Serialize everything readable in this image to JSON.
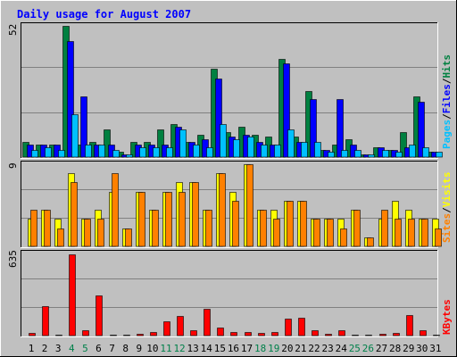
{
  "title": "Daily usage for August 2007",
  "y_max_labels": {
    "top": "52",
    "middle": "9",
    "bottom": "635"
  },
  "legend": {
    "top": [
      "Hits",
      "/",
      "Files",
      "/",
      "Pages"
    ],
    "middle": [
      "Visits",
      "/",
      "Sites"
    ],
    "bottom": [
      "KBytes"
    ]
  },
  "colors": {
    "background": "#C0C0C0",
    "title": "#0000FF",
    "hits": "#008040",
    "files": "#0000FF",
    "pages": "#00C0FF",
    "visits": "#FFFF00",
    "sites": "#FF8000",
    "kbytes": "#FF0000",
    "weekend_label": "#00804A"
  },
  "chart_data": [
    {
      "type": "bar",
      "title": "Daily usage for August 2007",
      "x": [
        "1",
        "2",
        "3",
        "4",
        "5",
        "6",
        "7",
        "8",
        "9",
        "10",
        "11",
        "12",
        "13",
        "14",
        "15",
        "16",
        "17",
        "18",
        "19",
        "20",
        "21",
        "22",
        "23",
        "24",
        "25",
        "26",
        "27",
        "28",
        "29",
        "30",
        "31"
      ],
      "weekend_days": [
        "4",
        "5",
        "11",
        "12",
        "18",
        "19",
        "25",
        "26"
      ],
      "ylim": [
        0,
        52
      ],
      "grid": true,
      "series": [
        {
          "name": "Hits",
          "values": [
            6,
            5,
            5,
            52,
            5,
            6,
            11,
            2,
            6,
            6,
            11,
            13,
            6,
            9,
            35,
            10,
            12,
            9,
            8,
            39,
            8,
            26,
            3,
            5,
            7,
            1,
            4,
            3,
            10,
            24,
            2
          ]
        },
        {
          "name": "Files",
          "values": [
            5,
            5,
            5,
            46,
            24,
            5,
            5,
            1,
            5,
            5,
            5,
            12,
            6,
            7,
            31,
            8,
            9,
            6,
            5,
            37,
            6,
            23,
            3,
            23,
            5,
            1,
            4,
            3,
            4,
            22,
            2
          ]
        },
        {
          "name": "Pages",
          "values": [
            3,
            4,
            3,
            17,
            5,
            5,
            3,
            1,
            4,
            4,
            4,
            11,
            5,
            4,
            13,
            7,
            8,
            5,
            5,
            11,
            6,
            6,
            2,
            3,
            3,
            1,
            3,
            2,
            5,
            4,
            2
          ]
        }
      ]
    },
    {
      "type": "bar",
      "x": [
        "1",
        "2",
        "3",
        "4",
        "5",
        "6",
        "7",
        "8",
        "9",
        "10",
        "11",
        "12",
        "13",
        "14",
        "15",
        "16",
        "17",
        "18",
        "19",
        "20",
        "21",
        "22",
        "23",
        "24",
        "25",
        "26",
        "27",
        "28",
        "29",
        "30",
        "31"
      ],
      "ylim": [
        0,
        9
      ],
      "grid": true,
      "series": [
        {
          "name": "Visits",
          "values": [
            3,
            4,
            3,
            8,
            3,
            4,
            6,
            2,
            6,
            4,
            6,
            7,
            7,
            4,
            8,
            6,
            9,
            4,
            4,
            5,
            5,
            3,
            3,
            3,
            4,
            1,
            3,
            5,
            4,
            3,
            3
          ]
        },
        {
          "name": "Sites",
          "values": [
            4,
            4,
            2,
            7,
            3,
            3,
            8,
            2,
            6,
            4,
            6,
            6,
            7,
            4,
            8,
            5,
            9,
            4,
            3,
            5,
            5,
            3,
            3,
            2,
            4,
            1,
            4,
            3,
            3,
            3,
            2
          ]
        }
      ]
    },
    {
      "type": "bar",
      "x": [
        "1",
        "2",
        "3",
        "4",
        "5",
        "6",
        "7",
        "8",
        "9",
        "10",
        "11",
        "12",
        "13",
        "14",
        "15",
        "16",
        "17",
        "18",
        "19",
        "20",
        "21",
        "22",
        "23",
        "24",
        "25",
        "26",
        "27",
        "28",
        "29",
        "30",
        "31"
      ],
      "ylim": [
        0,
        635
      ],
      "grid": true,
      "series": [
        {
          "name": "KBytes",
          "values": [
            20,
            230,
            10,
            630,
            40,
            310,
            10,
            10,
            15,
            30,
            110,
            150,
            40,
            210,
            60,
            25,
            30,
            20,
            25,
            130,
            140,
            40,
            15,
            40,
            10,
            10,
            15,
            20,
            160,
            40,
            10
          ]
        }
      ]
    }
  ]
}
